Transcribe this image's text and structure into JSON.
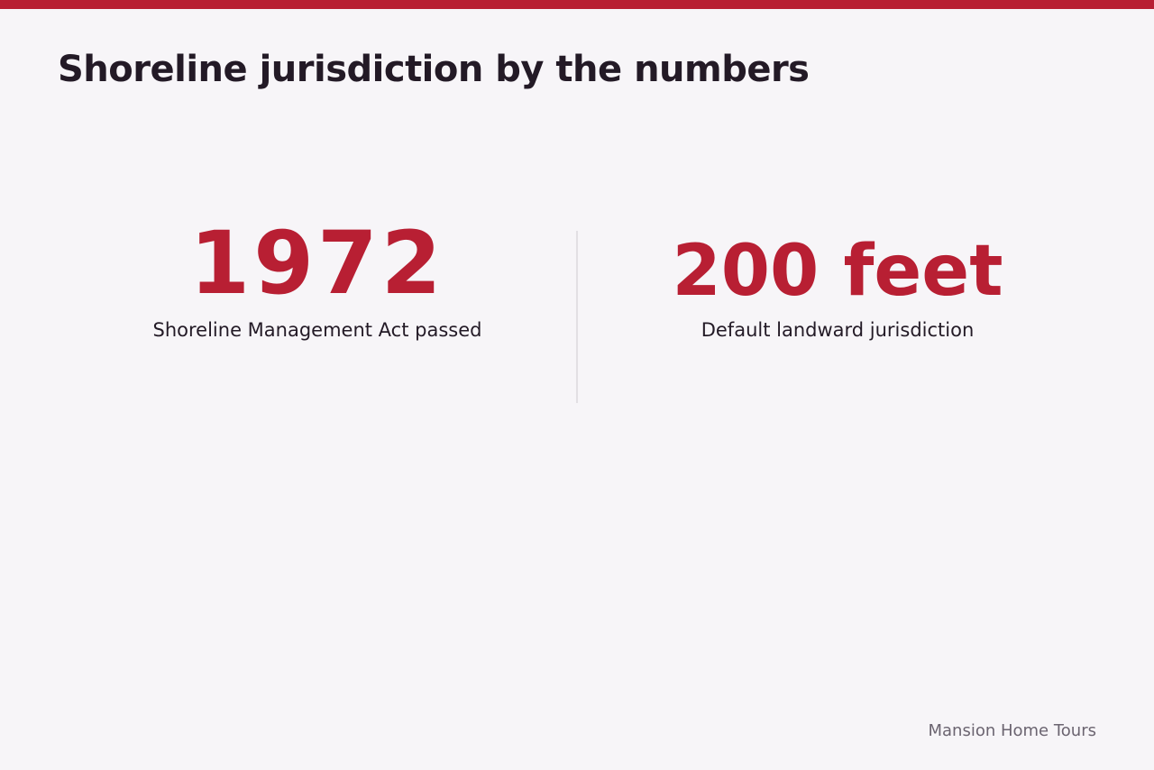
{
  "header": {
    "title": "Shoreline jurisdiction by the numbers"
  },
  "stats": [
    {
      "value": "1972",
      "label": "Shoreline Management Act passed"
    },
    {
      "value": "200 feet",
      "label": "Default landward jurisdiction"
    }
  ],
  "footer": {
    "brand": "Mansion Home Tours"
  }
}
